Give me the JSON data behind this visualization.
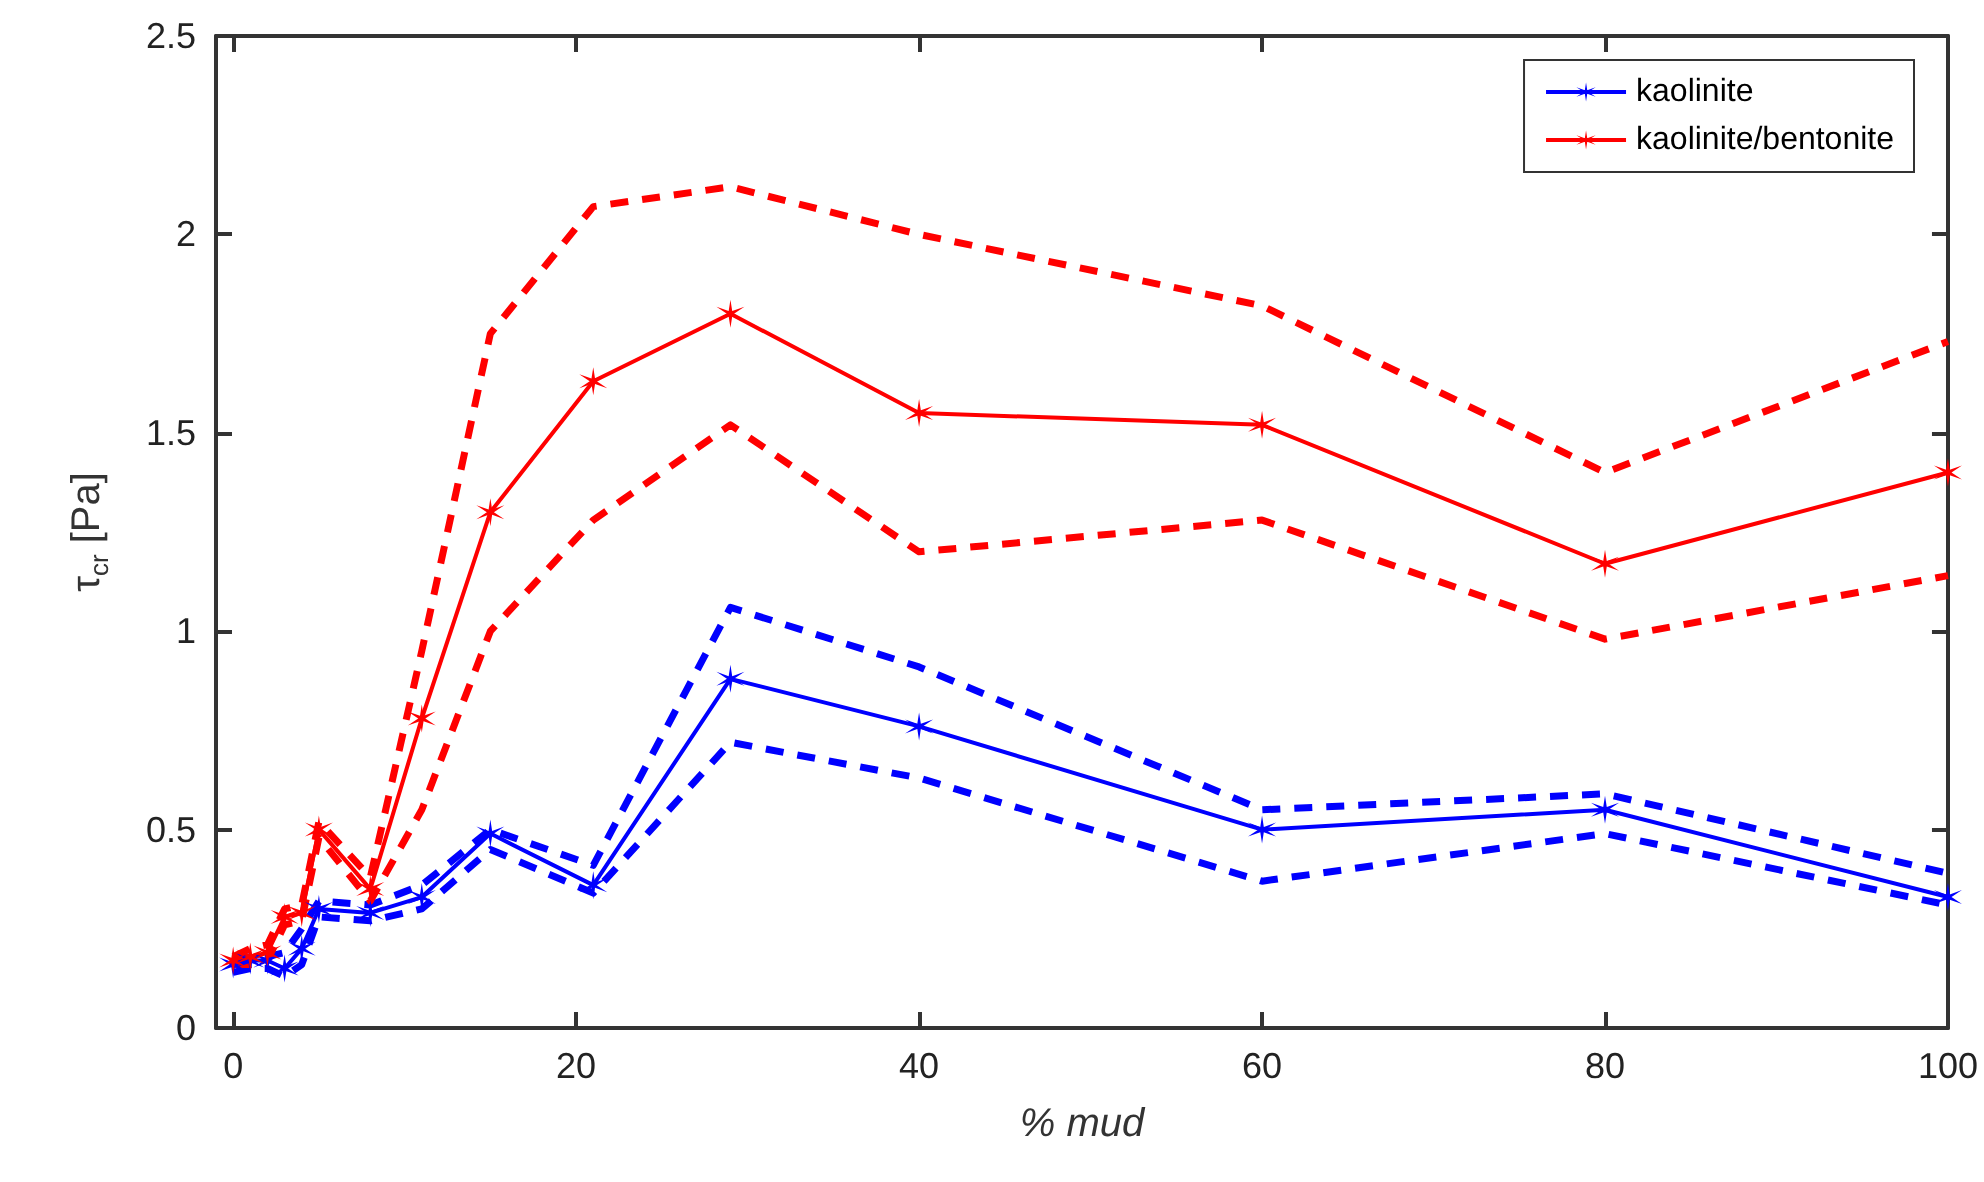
{
  "chart_data": {
    "type": "line",
    "xlabel": "% mud",
    "ylabel": "τ$_{cr}$ [Pa]",
    "x": [
      0,
      1,
      2,
      3,
      4,
      5,
      8,
      11,
      15,
      21,
      29,
      40,
      60,
      80,
      100
    ],
    "series": [
      {
        "name": "kaolinite",
        "color": "#0000ff",
        "marker": "cross",
        "line_style": "solid",
        "values": [
          0.16,
          0.17,
          0.17,
          0.15,
          0.2,
          0.3,
          0.29,
          0.33,
          0.49,
          0.36,
          0.88,
          0.76,
          0.5,
          0.55,
          0.33
        ]
      },
      {
        "name": "kaolinite/bentonite",
        "color": "#ff0000",
        "marker": "cross",
        "line_style": "solid",
        "values": [
          0.17,
          0.18,
          0.19,
          0.28,
          0.29,
          0.5,
          0.35,
          0.78,
          1.3,
          1.63,
          1.8,
          1.55,
          1.52,
          1.17,
          1.4
        ]
      },
      {
        "color": "#0000ff",
        "marker": "none",
        "line_style": "dashed",
        "values": [
          0.17,
          0.18,
          0.18,
          0.19,
          0.25,
          0.32,
          0.31,
          0.36,
          0.5,
          0.41,
          1.06,
          0.91,
          0.55,
          0.59,
          0.39
        ]
      },
      {
        "color": "#0000ff",
        "marker": "none",
        "line_style": "dashed",
        "values": [
          0.14,
          0.15,
          0.15,
          0.13,
          0.16,
          0.28,
          0.27,
          0.3,
          0.45,
          0.34,
          0.72,
          0.63,
          0.37,
          0.49,
          0.31
        ]
      },
      {
        "color": "#ff0000",
        "marker": "none",
        "line_style": "dashed",
        "values": [
          0.18,
          0.2,
          0.21,
          0.3,
          0.31,
          0.52,
          0.38,
          0.95,
          1.75,
          2.07,
          2.12,
          2.0,
          1.82,
          1.4,
          1.73
        ]
      },
      {
        "color": "#ff0000",
        "marker": "none",
        "line_style": "dashed",
        "values": [
          0.16,
          0.16,
          0.17,
          0.26,
          0.27,
          0.48,
          0.32,
          0.55,
          1.0,
          1.28,
          1.52,
          1.2,
          1.28,
          0.98,
          1.14
        ]
      }
    ],
    "xlim": [
      -1,
      100
    ],
    "xticks": [
      0,
      20,
      40,
      60,
      80,
      100
    ],
    "ylim": [
      0,
      2.5
    ],
    "yticks": [
      0,
      0.5,
      1,
      1.5,
      2,
      2.5
    ],
    "legend": "top right",
    "grid": false
  }
}
